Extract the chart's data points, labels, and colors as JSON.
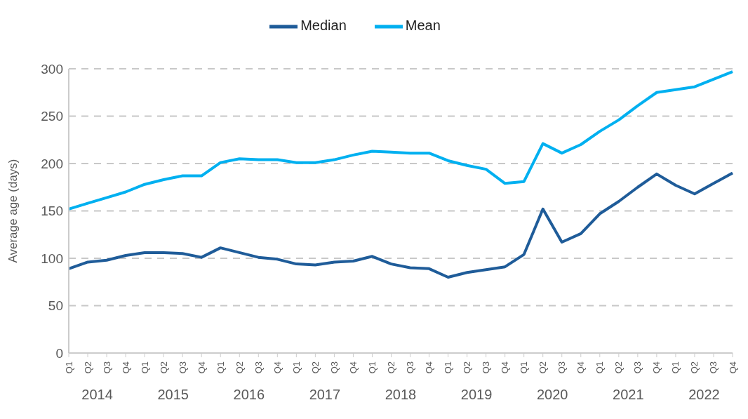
{
  "chart_data": {
    "type": "line",
    "ylabel": "Average age (days)",
    "categories": [
      "Q1",
      "Q2",
      "Q3",
      "Q4",
      "Q1",
      "Q2",
      "Q3",
      "Q4",
      "Q1",
      "Q2",
      "Q3",
      "Q4",
      "Q1",
      "Q2",
      "Q3",
      "Q4",
      "Q1",
      "Q2",
      "Q3",
      "Q4",
      "Q1",
      "Q2",
      "Q3",
      "Q4",
      "Q1",
      "Q2",
      "Q3",
      "Q4",
      "Q1",
      "Q2",
      "Q3",
      "Q4",
      "Q1",
      "Q2",
      "Q3",
      "Q4"
    ],
    "annotations": [
      "2014",
      "2015",
      "2016",
      "2017",
      "2018",
      "2019",
      "2020",
      "2021",
      "2022"
    ],
    "series": [
      {
        "name": "Median",
        "color": "#1f5c99",
        "values": [
          89,
          96,
          98,
          103,
          106,
          106,
          105,
          101,
          111,
          106,
          101,
          99,
          94,
          93,
          96,
          97,
          102,
          94,
          90,
          89,
          80,
          85,
          88,
          91,
          104,
          152,
          117,
          126,
          147,
          160,
          175,
          189,
          177,
          168,
          179,
          190
        ]
      },
      {
        "name": "Mean",
        "color": "#00b0f0",
        "values": [
          152,
          158,
          164,
          170,
          178,
          183,
          187,
          187,
          201,
          205,
          204,
          204,
          201,
          201,
          204,
          209,
          213,
          212,
          211,
          211,
          203,
          198,
          194,
          179,
          181,
          221,
          211,
          220,
          234,
          246,
          261,
          275,
          278,
          281,
          289,
          297
        ]
      }
    ],
    "ylim": [
      0,
      300
    ],
    "yticks": [
      0,
      50,
      100,
      150,
      200,
      250,
      300
    ],
    "grid": "y",
    "legend": "top",
    "marker": "none",
    "line_style": "solid"
  }
}
